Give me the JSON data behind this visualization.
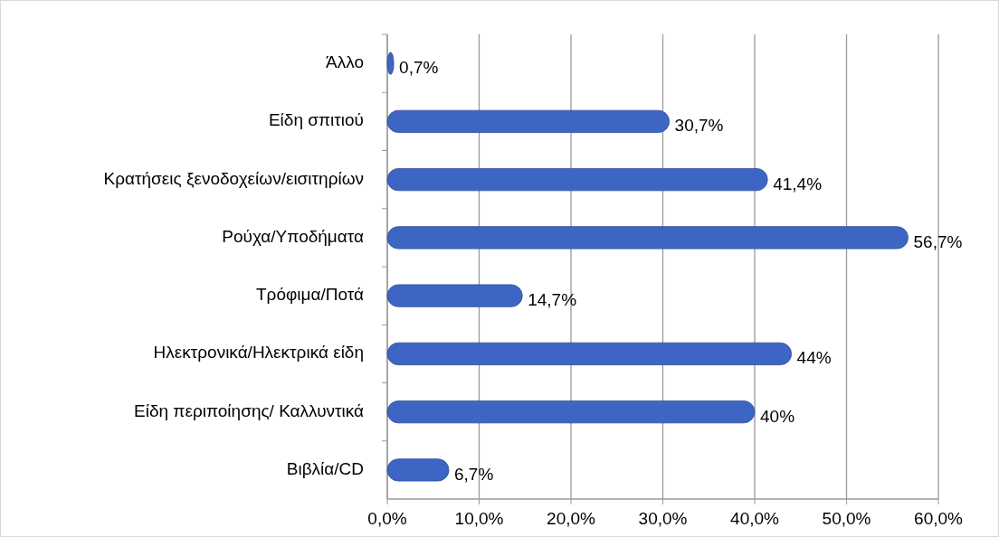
{
  "chart_data": {
    "type": "bar",
    "orientation": "horizontal",
    "categories": [
      "Άλλο",
      "Είδη σπιτιού",
      "Κρατήσεις ξενοδοχείων/εισιτηρίων",
      "Ρούχα/Υποδήματα",
      "Τρόφιμα/Ποτά",
      "Ηλεκτρονικά/Ηλεκτρικά είδη",
      "Είδη περιποίησης/ Καλλυντικά",
      "Βιβλία/CD"
    ],
    "values": [
      0.7,
      30.7,
      41.4,
      56.7,
      14.7,
      44,
      40,
      6.7
    ],
    "value_labels": [
      "0,7%",
      "30,7%",
      "41,4%",
      "56,7%",
      "14,7%",
      "44%",
      "40%",
      "6,7%"
    ],
    "color": "#3d66c4",
    "xlim": [
      0,
      60
    ],
    "xticks": [
      {
        "value": 0,
        "label": "0,0%"
      },
      {
        "value": 10,
        "label": "10,0%"
      },
      {
        "value": 20,
        "label": "20,0%"
      },
      {
        "value": 30,
        "label": "30,0%"
      },
      {
        "value": 40,
        "label": "40,0%"
      },
      {
        "value": 50,
        "label": "50,0%"
      },
      {
        "value": 60,
        "label": "60,0%"
      }
    ],
    "grid": "x"
  }
}
